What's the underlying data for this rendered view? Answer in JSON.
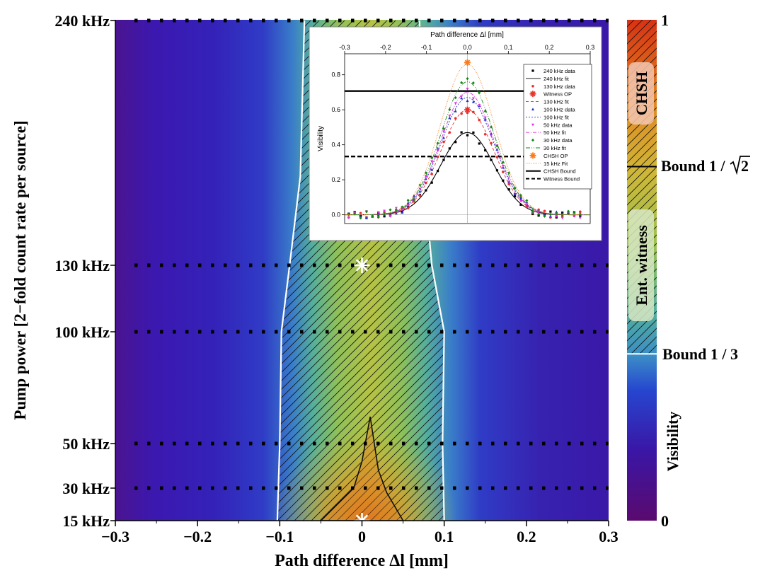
{
  "main": {
    "type": "heatmap",
    "xlabel": "Path difference Δl [mm]",
    "ylabel": "Pump power [2−fold count rate per source]",
    "x_ticks": [
      -0.3,
      -0.2,
      -0.1,
      0.0,
      0.1,
      0.2,
      0.3
    ],
    "x_tick_labels": [
      "−0.3",
      "−0.2",
      "−0.1",
      "0",
      "0.1",
      "0.2",
      "0.3"
    ],
    "xlim": [
      -0.3,
      0.3
    ],
    "y_levels_khz": [
      15,
      30,
      50,
      100,
      130,
      240
    ],
    "y_tick_labels": [
      "15 kHz",
      "30 kHz",
      "50 kHz",
      "100 kHz",
      "130 kHz",
      "240 kHz"
    ],
    "witness_boundary_left": [
      [
        -0.103,
        15
      ],
      [
        -0.1,
        50
      ],
      [
        -0.098,
        100
      ],
      [
        -0.088,
        130
      ],
      [
        -0.075,
        170
      ],
      [
        -0.07,
        240
      ]
    ],
    "witness_boundary_right": [
      [
        0.1,
        15
      ],
      [
        0.098,
        50
      ],
      [
        0.1,
        100
      ],
      [
        0.085,
        130
      ],
      [
        0.075,
        170
      ],
      [
        0.07,
        240
      ]
    ],
    "chsh_boundary": [
      [
        -0.05,
        15
      ],
      [
        -0.01,
        30
      ],
      [
        0.0,
        42
      ],
      [
        0.01,
        62
      ],
      [
        0.02,
        38
      ],
      [
        0.03,
        28
      ],
      [
        0.05,
        15
      ]
    ],
    "markers": [
      {
        "x": 0.0,
        "y_khz": 130,
        "symbol": "asterisk"
      },
      {
        "x": 0.0,
        "y_khz": 15,
        "symbol": "asterisk"
      }
    ]
  },
  "colorbar": {
    "min_label": "0",
    "max_label": "1",
    "label": "Visibility",
    "bound_witness_text": "Bound 1 / 3",
    "bound_witness_value": 0.333,
    "bound_chsh_prefix": "Bound 1 /",
    "bound_chsh_radicand": "2",
    "bound_chsh_value": 0.707,
    "region_chsh_label": "CHSH",
    "region_witness_label": "Ent. witness",
    "colors": [
      "#5a0a6e",
      "#3a16a6",
      "#2646cf",
      "#3b8ec6",
      "#52b09b",
      "#9bc34e",
      "#d0b638",
      "#e0881f",
      "#d83214"
    ]
  },
  "inset": {
    "title": "Path difference Δl [mm]",
    "ylabel": "Visibility",
    "x_ticks": [
      -0.3,
      -0.2,
      -0.1,
      0.0,
      0.1,
      0.2,
      0.3
    ],
    "x_tick_labels": [
      "-0.3",
      "-0.2",
      "-0.1",
      "0.0",
      "0.1",
      "0.2",
      "0.3"
    ],
    "y_ticks": [
      0.0,
      0.2,
      0.4,
      0.6,
      0.8
    ],
    "y_tick_labels": [
      "0.0",
      "0.2",
      "0.4",
      "0.6",
      "0.8"
    ],
    "xlim": [
      -0.3,
      0.3
    ],
    "ylim": [
      -0.05,
      0.92
    ],
    "fit_series": [
      {
        "name": "240 kHz fit",
        "color": "#000000",
        "peak": 0.47,
        "dash": ""
      },
      {
        "name": "130 kHz fit",
        "color": "#e8302a",
        "peak": 0.6,
        "dash": "4,3"
      },
      {
        "name": "100 kHz fit",
        "color": "#2233cc",
        "peak": 0.67,
        "dash": "2,2"
      },
      {
        "name": "50 kHz fit",
        "color": "#dd33dd",
        "peak": 0.7,
        "dash": "5,2,1,2"
      },
      {
        "name": "30 kHz fit",
        "color": "#118811",
        "peak": 0.76,
        "dash": "6,2,1,2,1,2"
      },
      {
        "name": "15 kHz Fit",
        "color": "#ff7a1a",
        "peak": 0.86,
        "dash": "1,1.5"
      }
    ],
    "fit_width": 0.065,
    "chsh_bound": 0.707,
    "witness_bound": 0.333,
    "bound_x_end": 0.15,
    "witness_op": {
      "x": 0.0,
      "y": 0.6
    },
    "chsh_op": {
      "x": 0.0,
      "y": 0.87
    },
    "legend": [
      {
        "label": "240 kHz data",
        "kind": "square",
        "color": "#000000"
      },
      {
        "label": "240 kHz fit",
        "kind": "line",
        "color": "#000000",
        "dash": ""
      },
      {
        "label": "130 kHz data",
        "kind": "dot",
        "color": "#e8302a"
      },
      {
        "label": "Witness OP",
        "kind": "star",
        "color": "#e8302a"
      },
      {
        "label": "130 kHz fit",
        "kind": "line",
        "color": "#e8302a",
        "dash": "4,3"
      },
      {
        "label": "100 kHz data",
        "kind": "triangle",
        "color": "#2233cc"
      },
      {
        "label": "100 kHz fit",
        "kind": "line",
        "color": "#2233cc",
        "dash": "2,2"
      },
      {
        "label": "50 kHz data",
        "kind": "tri-down",
        "color": "#dd33dd"
      },
      {
        "label": "50 kHz fit",
        "kind": "line",
        "color": "#dd33dd",
        "dash": "5,2,1,2"
      },
      {
        "label": "30 kHz data",
        "kind": "diamond",
        "color": "#118811"
      },
      {
        "label": "30 kHz fit",
        "kind": "line",
        "color": "#118811",
        "dash": "6,2,1,2,1,2"
      },
      {
        "label": "CHSH OP",
        "kind": "star",
        "color": "#ff7a1a"
      },
      {
        "label": "15 kHz Fit",
        "kind": "line",
        "color": "#ff7a1a",
        "dash": "1,1.5"
      },
      {
        "label": "CHSH Bound",
        "kind": "thick",
        "color": "#000000",
        "dash": ""
      },
      {
        "label": "Witness Bound",
        "kind": "thick",
        "color": "#000000",
        "dash": "5,3"
      }
    ]
  }
}
